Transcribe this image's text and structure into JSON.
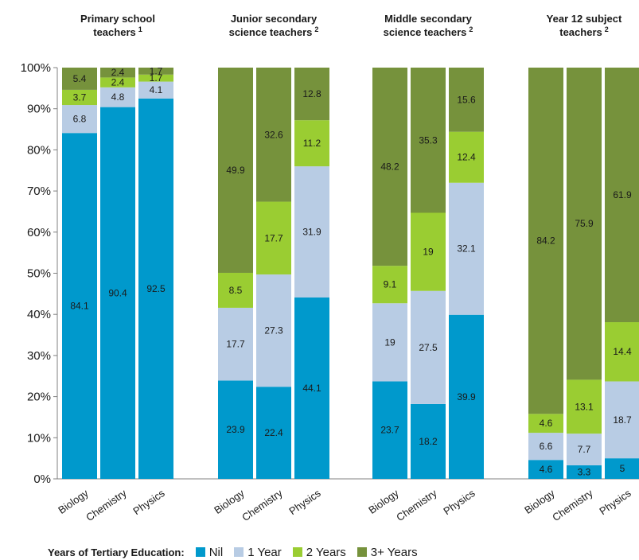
{
  "chart_data": {
    "type": "bar",
    "stacked": true,
    "ylim": [
      0,
      100
    ],
    "yticks": [
      "0%",
      "10%",
      "20%",
      "30%",
      "40%",
      "50%",
      "60%",
      "70%",
      "80%",
      "90%",
      "100%"
    ],
    "groups": [
      {
        "title_lines": [
          "Primary school",
          "teachers"
        ],
        "title_sup": "1",
        "categories": [
          "Biology",
          "Chemistry",
          "Physics"
        ],
        "series": [
          {
            "name": "Nil",
            "values": [
              84.1,
              90.4,
              92.5
            ]
          },
          {
            "name": "1 Year",
            "values": [
              6.8,
              4.8,
              4.1
            ]
          },
          {
            "name": "2 Years",
            "values": [
              3.7,
              2.4,
              1.7
            ]
          },
          {
            "name": "3+ Years",
            "values": [
              5.4,
              2.4,
              1.7
            ]
          }
        ],
        "labels": [
          [
            "84.1",
            "90.4",
            "92.5"
          ],
          [
            "6.8",
            "4.8",
            "4.1"
          ],
          [
            "3.7",
            "2.4",
            "1.7"
          ],
          [
            "5.4",
            "2.4",
            "1.7"
          ]
        ]
      },
      {
        "title_lines": [
          "Junior secondary",
          "science teachers"
        ],
        "title_sup": "2",
        "categories": [
          "Biology",
          "Chemistry",
          "Physics"
        ],
        "series": [
          {
            "name": "Nil",
            "values": [
              23.9,
              22.4,
              44.1
            ]
          },
          {
            "name": "1 Year",
            "values": [
              17.7,
              27.3,
              31.9
            ]
          },
          {
            "name": "2 Years",
            "values": [
              8.5,
              17.7,
              11.2
            ]
          },
          {
            "name": "3+ Years",
            "values": [
              49.9,
              32.6,
              12.8
            ]
          }
        ],
        "labels": [
          [
            "23.9",
            "22.4",
            "44.1"
          ],
          [
            "17.7",
            "27.3",
            "31.9"
          ],
          [
            "8.5",
            "17.7",
            "11.2"
          ],
          [
            "49.9",
            "32.6",
            "12.8"
          ]
        ]
      },
      {
        "title_lines": [
          "Middle secondary",
          "science teachers"
        ],
        "title_sup": "2",
        "categories": [
          "Biology",
          "Chemistry",
          "Physics"
        ],
        "series": [
          {
            "name": "Nil",
            "values": [
              23.7,
              18.2,
              39.9
            ]
          },
          {
            "name": "1 Year",
            "values": [
              19,
              27.5,
              32.1
            ]
          },
          {
            "name": "2 Years",
            "values": [
              9.1,
              19,
              12.4
            ]
          },
          {
            "name": "3+ Years",
            "values": [
              48.2,
              35.3,
              15.6
            ]
          }
        ],
        "labels": [
          [
            "23.7",
            "18.2",
            "39.9"
          ],
          [
            "19",
            "27.5",
            "32.1"
          ],
          [
            "9.1",
            "19",
            "12.4"
          ],
          [
            "48.2",
            "35.3",
            "15.6"
          ]
        ]
      },
      {
        "title_lines": [
          "Year 12 subject",
          "teachers"
        ],
        "title_sup": "2",
        "categories": [
          "Biology",
          "Chemistry",
          "Physics"
        ],
        "series": [
          {
            "name": "Nil",
            "values": [
              4.6,
              3.3,
              5
            ]
          },
          {
            "name": "1 Year",
            "values": [
              6.6,
              7.7,
              18.7
            ]
          },
          {
            "name": "2 Years",
            "values": [
              4.6,
              13.1,
              14.4
            ]
          },
          {
            "name": "3+ Years",
            "values": [
              84.2,
              75.9,
              61.9
            ]
          }
        ],
        "labels": [
          [
            "4.6",
            "3.3",
            "5"
          ],
          [
            "6.6",
            "7.7",
            "18.7"
          ],
          [
            "4.6",
            "13.1",
            "14.4"
          ],
          [
            "84.2",
            "75.9",
            "61.9"
          ]
        ]
      }
    ],
    "colors": [
      "#0099cc",
      "#b8cce4",
      "#9acd32",
      "#76923c"
    ],
    "legend": {
      "title": "Years of Tertiary Education:",
      "position": "bottom",
      "items": [
        "Nil",
        "1 Year",
        "2 Years",
        "3+ Years"
      ]
    }
  }
}
